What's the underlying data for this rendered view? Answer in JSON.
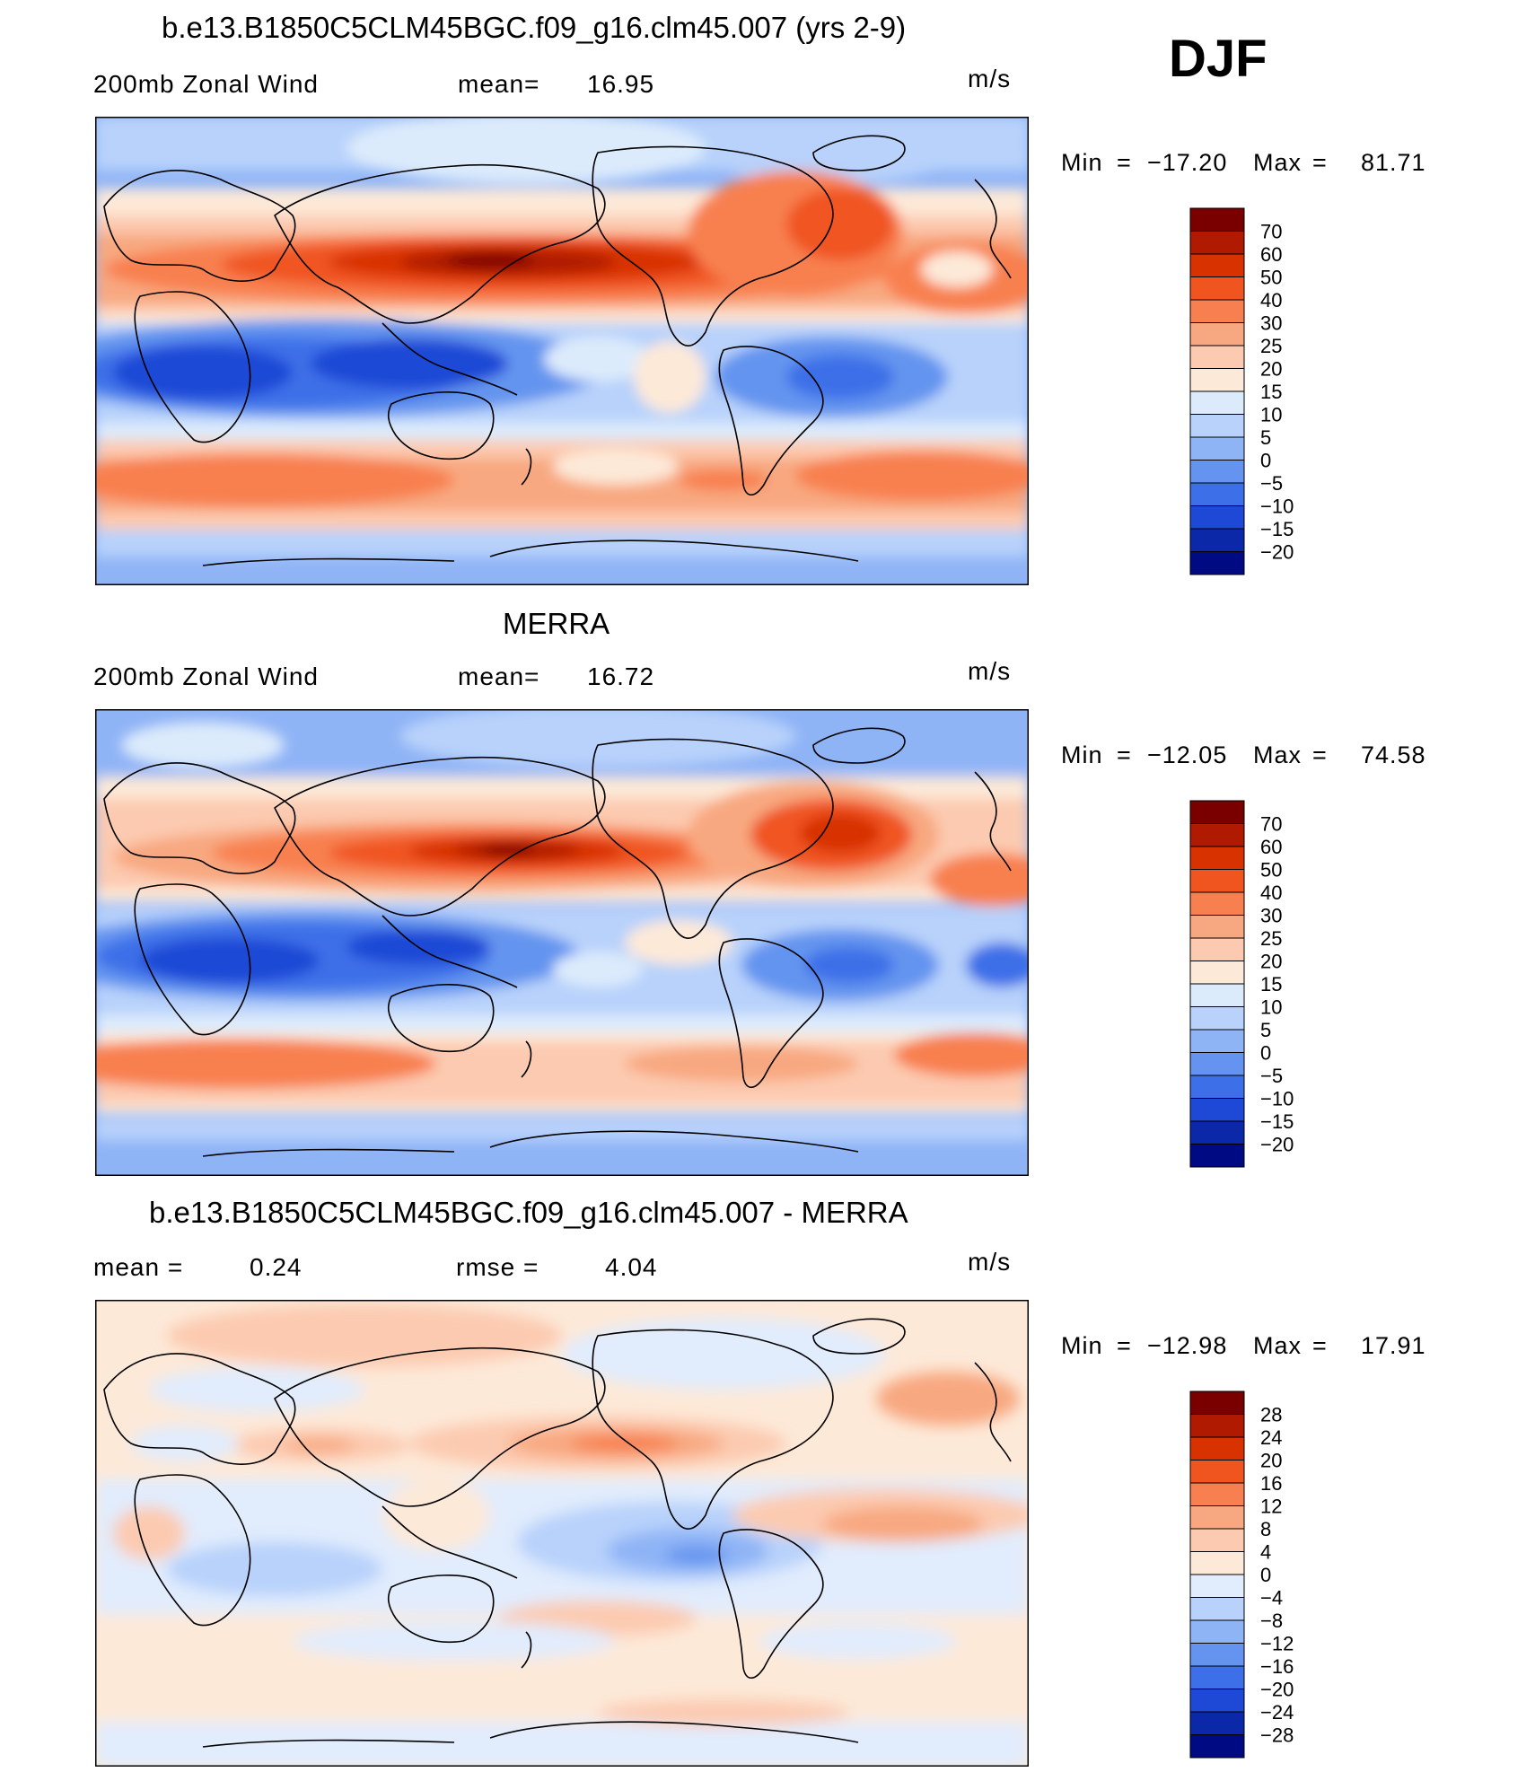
{
  "season": "DJF",
  "panels": [
    {
      "title": "b.e13.B1850C5CLM45BGC.f09_g16.clm45.007 (yrs 2-9)",
      "left_label": "200mb Zonal Wind",
      "stat1_label": "mean=",
      "stat1_value": "16.95",
      "stat2_label": "",
      "stat2_value": "",
      "units": "m/s",
      "min_label": "Min",
      "min_value": "−17.20",
      "max_label": "Max",
      "max_value": "81.71",
      "colorbar_labels": [
        "70",
        "60",
        "50",
        "40",
        "30",
        "25",
        "20",
        "15",
        "10",
        "5",
        "0",
        "−5",
        "−10",
        "−15",
        "−20"
      ]
    },
    {
      "title": "MERRA",
      "left_label": "200mb Zonal Wind",
      "stat1_label": "mean=",
      "stat1_value": "16.72",
      "stat2_label": "",
      "stat2_value": "",
      "units": "m/s",
      "min_label": "Min",
      "min_value": "−12.05",
      "max_label": "Max",
      "max_value": "74.58",
      "colorbar_labels": [
        "70",
        "60",
        "50",
        "40",
        "30",
        "25",
        "20",
        "15",
        "10",
        "5",
        "0",
        "−5",
        "−10",
        "−15",
        "−20"
      ]
    },
    {
      "title": "b.e13.B1850C5CLM45BGC.f09_g16.clm45.007 - MERRA",
      "left_label": "",
      "stat1_label": "mean =",
      "stat1_value": "0.24",
      "stat2_label": "rmse =",
      "stat2_value": "4.04",
      "units": "m/s",
      "min_label": "Min",
      "min_value": "−12.98",
      "max_label": "Max",
      "max_value": "17.91",
      "colorbar_labels": [
        "28",
        "24",
        "20",
        "16",
        "12",
        "8",
        "4",
        "0",
        "−4",
        "−8",
        "−12",
        "−16",
        "−20",
        "−24",
        "−28"
      ]
    }
  ],
  "colors": {
    "abs_scale": [
      "#7a0000",
      "#b01a00",
      "#d83200",
      "#f05520",
      "#f88050",
      "#f8a880",
      "#fccab0",
      "#fde9d8",
      "#dcebfc",
      "#b8d2fb",
      "#8fb4f6",
      "#6494ef",
      "#3d6fe8",
      "#1e48d6",
      "#0a28a8",
      "#000a82"
    ],
    "diff_scale": [
      "#7a0000",
      "#b01a00",
      "#d83200",
      "#f05520",
      "#f88050",
      "#f8a880",
      "#fccab0",
      "#fde9d8",
      "#e1ecfd",
      "#b8d2fb",
      "#8fb4f6",
      "#6494ef",
      "#3d6fe8",
      "#1e48d6",
      "#0a28a8",
      "#000a82"
    ]
  }
}
